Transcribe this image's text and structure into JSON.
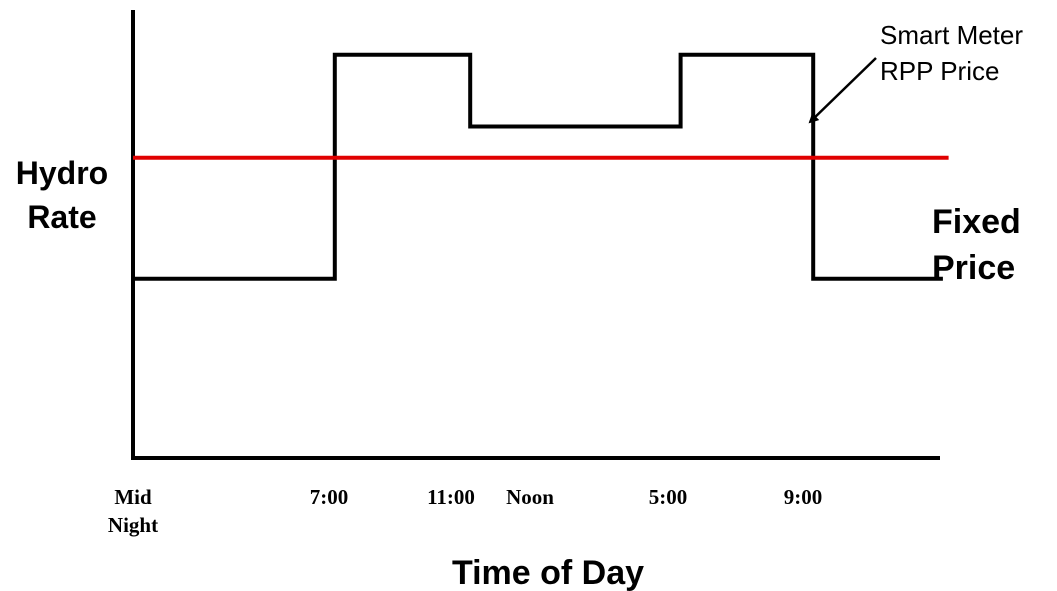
{
  "chart_data": {
    "type": "line",
    "title": "",
    "xlabel": "Time of Day",
    "ylabel_lines": [
      "Hydro",
      "Rate"
    ],
    "x_ticks": [
      {
        "hour": 0,
        "lines": [
          "Mid",
          "Night"
        ]
      },
      {
        "hour": 7,
        "lines": [
          "7:00"
        ]
      },
      {
        "hour": 11,
        "lines": [
          "11:00"
        ]
      },
      {
        "hour": 12,
        "lines": [
          "Noon"
        ]
      },
      {
        "hour": 17,
        "lines": [
          "5:00"
        ]
      },
      {
        "hour": 21,
        "lines": [
          "9:00"
        ]
      }
    ],
    "xlim": [
      0,
      28
    ],
    "ylim": [
      0,
      10
    ],
    "grid": false,
    "series": [
      {
        "name_lines": [
          "Smart Meter",
          "RPP Price"
        ],
        "color": "#000000",
        "step": true,
        "points": [
          [
            0,
            4
          ],
          [
            7,
            4
          ],
          [
            7,
            9
          ],
          [
            11.7,
            9
          ],
          [
            11.7,
            7.4
          ],
          [
            19,
            7.4
          ],
          [
            19,
            9
          ],
          [
            23.6,
            9
          ],
          [
            23.6,
            4
          ],
          [
            28.1,
            4
          ]
        ]
      },
      {
        "name_lines": [
          "Fixed",
          "Price"
        ],
        "color": "#e00000",
        "step": false,
        "points": [
          [
            0,
            6.7
          ],
          [
            28.3,
            6.7
          ]
        ]
      }
    ]
  }
}
